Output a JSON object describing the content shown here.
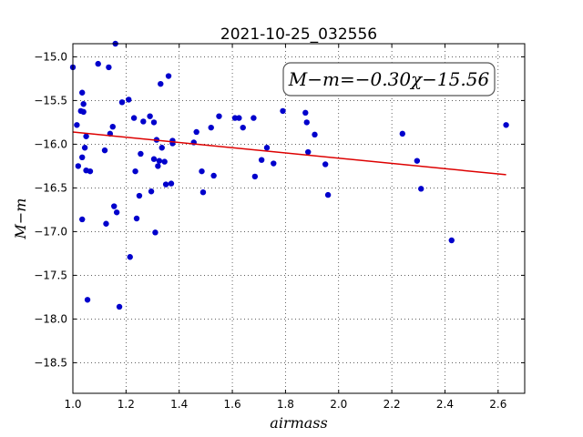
{
  "chart_data": {
    "type": "scatter",
    "title": "2021-10-25_032556",
    "xlabel": "airmass",
    "ylabel": "M−m",
    "xlim": [
      1.0,
      2.7
    ],
    "ylim": [
      -14.85,
      -18.85
    ],
    "y_inverted": true,
    "x_ticks": [
      1.0,
      1.2,
      1.4,
      1.6,
      1.8,
      2.0,
      2.2,
      2.4,
      2.6
    ],
    "x_tick_labels": [
      "1.0",
      "1.2",
      "1.4",
      "1.6",
      "1.8",
      "2.0",
      "2.2",
      "2.4",
      "2.6"
    ],
    "y_ticks": [
      -15.0,
      -15.5,
      -16.0,
      -16.5,
      -17.0,
      -17.5,
      -18.0,
      -18.5
    ],
    "y_tick_labels": [
      "−15.0",
      "−15.5",
      "−16.0",
      "−16.5",
      "−17.0",
      "−17.5",
      "−18.0",
      "−18.5"
    ],
    "grid": true,
    "annotation": "M−m=−0.30χ−15.56",
    "colors": {
      "points": "#0000cc",
      "fit_line": "#dd0000"
    },
    "fit_line": {
      "slope": -0.3,
      "intercept": -15.56,
      "x_range": [
        1.0,
        2.63
      ]
    },
    "points": [
      [
        1.0,
        -15.12
      ],
      [
        1.015,
        -15.78
      ],
      [
        1.02,
        -16.25
      ],
      [
        1.03,
        -15.62
      ],
      [
        1.035,
        -15.41
      ],
      [
        1.04,
        -15.54
      ],
      [
        1.04,
        -15.63
      ],
      [
        1.045,
        -16.04
      ],
      [
        1.035,
        -16.15
      ],
      [
        1.05,
        -15.91
      ],
      [
        1.05,
        -16.3
      ],
      [
        1.035,
        -16.86
      ],
      [
        1.055,
        -17.78
      ],
      [
        1.065,
        -16.31
      ],
      [
        1.095,
        -15.08
      ],
      [
        1.12,
        -16.07
      ],
      [
        1.125,
        -16.91
      ],
      [
        1.135,
        -15.12
      ],
      [
        1.14,
        -15.88
      ],
      [
        1.15,
        -15.8
      ],
      [
        1.155,
        -16.71
      ],
      [
        1.16,
        -14.85
      ],
      [
        1.165,
        -16.78
      ],
      [
        1.175,
        -17.86
      ],
      [
        1.185,
        -15.52
      ],
      [
        1.21,
        -15.49
      ],
      [
        1.215,
        -17.29
      ],
      [
        1.23,
        -15.7
      ],
      [
        1.235,
        -16.31
      ],
      [
        1.24,
        -16.85
      ],
      [
        1.25,
        -16.59
      ],
      [
        1.255,
        -16.11
      ],
      [
        1.265,
        -15.74
      ],
      [
        1.29,
        -15.68
      ],
      [
        1.295,
        -16.54
      ],
      [
        1.305,
        -15.75
      ],
      [
        1.305,
        -16.17
      ],
      [
        1.31,
        -17.01
      ],
      [
        1.315,
        -15.95
      ],
      [
        1.32,
        -16.25
      ],
      [
        1.325,
        -16.19
      ],
      [
        1.33,
        -15.31
      ],
      [
        1.335,
        -16.04
      ],
      [
        1.345,
        -16.2
      ],
      [
        1.35,
        -16.46
      ],
      [
        1.36,
        -15.22
      ],
      [
        1.37,
        -16.45
      ],
      [
        1.375,
        -15.96
      ],
      [
        1.375,
        -15.99
      ],
      [
        1.455,
        -15.98
      ],
      [
        1.465,
        -15.86
      ],
      [
        1.485,
        -16.31
      ],
      [
        1.49,
        -16.55
      ],
      [
        1.52,
        -15.81
      ],
      [
        1.53,
        -16.36
      ],
      [
        1.55,
        -15.68
      ],
      [
        1.61,
        -15.7
      ],
      [
        1.625,
        -15.7
      ],
      [
        1.64,
        -15.81
      ],
      [
        1.68,
        -15.7
      ],
      [
        1.685,
        -16.37
      ],
      [
        1.71,
        -16.18
      ],
      [
        1.73,
        -16.04
      ],
      [
        1.755,
        -16.22
      ],
      [
        1.79,
        -15.62
      ],
      [
        1.875,
        -15.64
      ],
      [
        1.88,
        -15.75
      ],
      [
        1.885,
        -16.09
      ],
      [
        1.91,
        -15.89
      ],
      [
        1.95,
        -16.23
      ],
      [
        1.96,
        -16.58
      ],
      [
        2.24,
        -15.88
      ],
      [
        2.295,
        -16.19
      ],
      [
        2.31,
        -16.51
      ],
      [
        2.425,
        -17.1
      ],
      [
        2.63,
        -15.78
      ]
    ]
  }
}
